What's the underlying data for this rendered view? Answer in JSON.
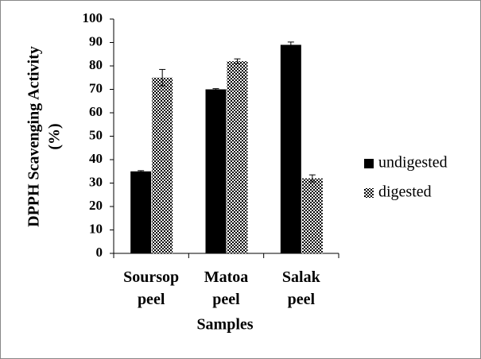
{
  "chart_data": {
    "type": "bar",
    "ylabel": [
      "DPPH Scavenging Activity",
      "(%)"
    ],
    "xlabel": "Samples",
    "categories": [
      "Soursop peel",
      "Matoa peel",
      "Salak peel"
    ],
    "series": [
      {
        "name": "undigested",
        "color": "#000000",
        "values": [
          35,
          70,
          89
        ],
        "errors": [
          0.3,
          0.3,
          1.2
        ]
      },
      {
        "name": "digested",
        "color": "checkered",
        "values": [
          75,
          82,
          32
        ],
        "errors": [
          3.5,
          1,
          1.5
        ]
      }
    ],
    "ylim": [
      0,
      100
    ],
    "yticks": [
      0,
      10,
      20,
      30,
      40,
      50,
      60,
      70,
      80,
      90,
      100
    ],
    "grid": false,
    "legend": "right"
  }
}
